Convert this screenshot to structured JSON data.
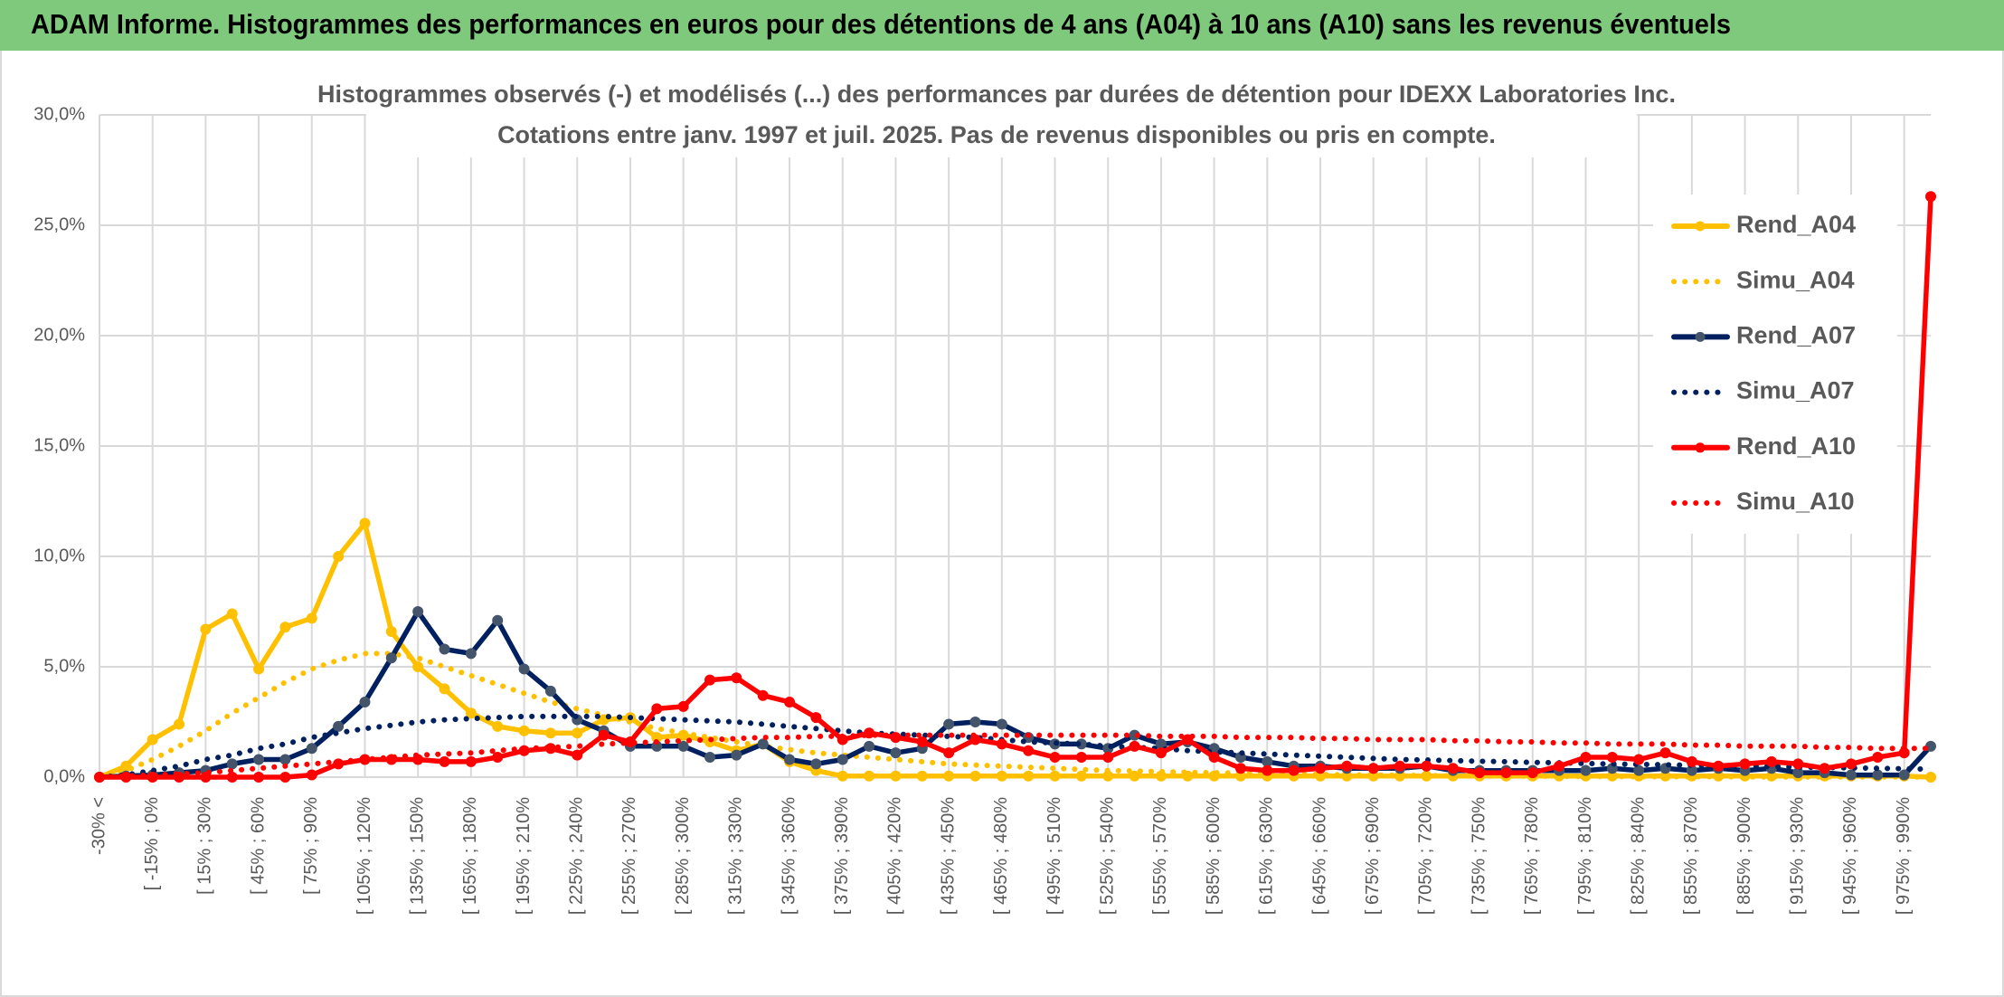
{
  "chart_data": {
    "type": "line",
    "title": "ADAM Informe. Histogrammes des performances en euros pour des détentions de 4 ans (A04) à 10 ans (A10) sans les revenus éventuels",
    "subtitle": [
      "Histogrammes observés (-) et modélisés (...) des performances par durées de détention pour IDEXX Laboratories Inc.",
      "Cotations entre janv. 1997 et juil. 2025. Pas de revenus disponibles ou pris en compte."
    ],
    "categories": [
      "-30% <",
      null,
      "[ -15% ; 0%",
      null,
      "[ 15% ; 30%",
      null,
      "[ 45% ; 60%",
      null,
      "[ 75% ; 90%",
      null,
      "[ 105% ; 120%",
      null,
      "[ 135% ; 150%",
      null,
      "[ 165% ; 180%",
      null,
      "[ 195% ; 210%",
      null,
      "[ 225% ; 240%",
      null,
      "[ 255% ; 270%",
      null,
      "[ 285% ; 300%",
      null,
      "[ 315% ; 330%",
      null,
      "[ 345% ; 360%",
      null,
      "[ 375% ; 390%",
      null,
      "[ 405% ; 420%",
      null,
      "[ 435% ; 450%",
      null,
      "[ 465% ; 480%",
      null,
      "[ 495% ; 510%",
      null,
      "[ 525% ; 540%",
      null,
      "[ 555% ; 570%",
      null,
      "[ 585% ; 600%",
      null,
      "[ 615% ; 630%",
      null,
      "[ 645% ; 660%",
      null,
      "[ 675% ; 690%",
      null,
      "[ 705% ; 720%",
      null,
      "[ 735% ; 750%",
      null,
      "[ 765% ; 780%",
      null,
      "[ 795% ; 810%",
      null,
      "[ 825% ; 840%",
      null,
      "[ 855% ; 870%",
      null,
      "[ 885% ; 900%",
      null,
      "[ 915% ; 930%",
      null,
      "[ 945% ; 960%",
      null,
      "[ 975% ; 990%",
      null
    ],
    "series": [
      {
        "name": "Rend_A04",
        "color": "#FFC000",
        "marker_color": "#FFC000",
        "style": "solid",
        "marker": true,
        "values": [
          0,
          0.5,
          1.7,
          2.4,
          6.7,
          7.4,
          4.9,
          6.8,
          7.2,
          10.0,
          11.5,
          6.6,
          5.0,
          4.0,
          2.9,
          2.3,
          2.1,
          2.0,
          2.0,
          2.6,
          2.7,
          1.8,
          1.9,
          1.6,
          1.2,
          1.5,
          0.7,
          0.3,
          0.05,
          0.05,
          0.05,
          0.05,
          0.05,
          0.05,
          0.05,
          0.05,
          0.05,
          0.05,
          0.05,
          0.05,
          0.05,
          0.05,
          0.05,
          0.05,
          0.05,
          0.05,
          0.05,
          0.05,
          0.05,
          0.05,
          0.05,
          0.05,
          0.05,
          0.05,
          0.05,
          0.05,
          0.05,
          0.05,
          0.05,
          0.05,
          0.05,
          0.05,
          0.05,
          0.05,
          0.05,
          0.05,
          0.05,
          0.05,
          0.05,
          0
        ]
      },
      {
        "name": "Simu_A04",
        "color": "#FFC000",
        "style": "dotted",
        "marker": false,
        "values": [
          0,
          0.3,
          0.8,
          1.4,
          2.1,
          2.9,
          3.6,
          4.3,
          4.9,
          5.3,
          5.6,
          5.6,
          5.4,
          5.0,
          4.6,
          4.2,
          3.8,
          3.4,
          3.1,
          2.8,
          2.5,
          2.2,
          2.0,
          1.8,
          1.6,
          1.4,
          1.25,
          1.1,
          1.0,
          0.9,
          0.8,
          0.7,
          0.6,
          0.55,
          0.5,
          0.45,
          0.4,
          0.35,
          0.3,
          0.28,
          0.25,
          0.22,
          0.2,
          0.18,
          0.16,
          0.14,
          0.12,
          0.1,
          0.1,
          0.08,
          0.07,
          0.06,
          0.05,
          0.05,
          0.04,
          0.04,
          0.03,
          0.03,
          0.02,
          0.02,
          0.02,
          0.02,
          0.01,
          0.01,
          0.01,
          0.01,
          0.01,
          0.01,
          0.01,
          0
        ]
      },
      {
        "name": "Rend_A07",
        "color": "#002060",
        "marker_color": "#44546A",
        "style": "solid",
        "marker": true,
        "values": [
          0,
          0.05,
          0.1,
          0.2,
          0.3,
          0.6,
          0.8,
          0.8,
          1.3,
          2.3,
          3.4,
          5.4,
          7.5,
          5.8,
          5.6,
          7.1,
          4.9,
          3.9,
          2.6,
          2.1,
          1.4,
          1.4,
          1.4,
          0.9,
          1.0,
          1.5,
          0.8,
          0.6,
          0.8,
          1.4,
          1.1,
          1.3,
          2.4,
          2.5,
          2.4,
          1.8,
          1.5,
          1.5,
          1.3,
          1.9,
          1.5,
          1.6,
          1.3,
          0.9,
          0.7,
          0.5,
          0.5,
          0.4,
          0.4,
          0.4,
          0.5,
          0.3,
          0.3,
          0.3,
          0.3,
          0.3,
          0.3,
          0.4,
          0.3,
          0.4,
          0.3,
          0.4,
          0.3,
          0.4,
          0.2,
          0.2,
          0.1,
          0.1,
          0.1,
          1.4
        ]
      },
      {
        "name": "Simu_A07",
        "color": "#002060",
        "style": "dotted",
        "marker": false,
        "values": [
          0,
          0.1,
          0.3,
          0.5,
          0.8,
          1.0,
          1.3,
          1.5,
          1.8,
          2.0,
          2.2,
          2.35,
          2.5,
          2.6,
          2.65,
          2.7,
          2.75,
          2.75,
          2.75,
          2.75,
          2.7,
          2.65,
          2.6,
          2.55,
          2.5,
          2.4,
          2.3,
          2.2,
          2.1,
          2.0,
          1.95,
          1.9,
          1.85,
          1.8,
          1.7,
          1.6,
          1.55,
          1.5,
          1.4,
          1.35,
          1.3,
          1.2,
          1.15,
          1.1,
          1.05,
          1.0,
          0.95,
          0.9,
          0.85,
          0.8,
          0.78,
          0.75,
          0.72,
          0.7,
          0.67,
          0.65,
          0.62,
          0.6,
          0.58,
          0.56,
          0.54,
          0.52,
          0.5,
          0.48,
          0.46,
          0.44,
          0.42,
          0.4,
          0.38,
          0.36
        ]
      },
      {
        "name": "Rend_A10",
        "color": "#FF0000",
        "marker_color": "#FF0000",
        "style": "solid",
        "marker": true,
        "values": [
          0,
          0,
          0,
          0,
          0,
          0,
          0,
          0,
          0.1,
          0.6,
          0.8,
          0.8,
          0.8,
          0.7,
          0.7,
          0.9,
          1.2,
          1.3,
          1.0,
          1.9,
          1.6,
          3.1,
          3.2,
          4.4,
          4.5,
          3.7,
          3.4,
          2.7,
          1.7,
          2.0,
          1.8,
          1.6,
          1.1,
          1.7,
          1.5,
          1.2,
          0.9,
          0.9,
          0.9,
          1.4,
          1.1,
          1.7,
          0.9,
          0.4,
          0.3,
          0.3,
          0.4,
          0.5,
          0.4,
          0.5,
          0.5,
          0.4,
          0.2,
          0.2,
          0.2,
          0.5,
          0.9,
          0.9,
          0.8,
          1.1,
          0.7,
          0.5,
          0.6,
          0.7,
          0.6,
          0.4,
          0.6,
          0.9,
          1.1,
          26.3
        ]
      },
      {
        "name": "Simu_A10",
        "color": "#FF0000",
        "style": "dotted",
        "marker": false,
        "values": [
          0,
          0.05,
          0.1,
          0.15,
          0.2,
          0.3,
          0.4,
          0.5,
          0.6,
          0.7,
          0.8,
          0.9,
          1.0,
          1.05,
          1.1,
          1.2,
          1.3,
          1.35,
          1.4,
          1.5,
          1.55,
          1.6,
          1.65,
          1.7,
          1.75,
          1.8,
          1.8,
          1.85,
          1.85,
          1.9,
          1.9,
          1.9,
          1.9,
          1.9,
          1.9,
          1.9,
          1.9,
          1.9,
          1.9,
          1.9,
          1.85,
          1.85,
          1.85,
          1.8,
          1.8,
          1.8,
          1.75,
          1.75,
          1.7,
          1.7,
          1.7,
          1.65,
          1.65,
          1.6,
          1.6,
          1.55,
          1.55,
          1.5,
          1.5,
          1.5,
          1.45,
          1.45,
          1.4,
          1.4,
          1.4,
          1.35,
          1.35,
          1.3,
          1.3,
          1.3
        ]
      }
    ],
    "ylim": [
      0,
      30
    ],
    "yticks": [
      {
        "value": 0,
        "label": "0,0%"
      },
      {
        "value": 5,
        "label": "5,0%"
      },
      {
        "value": 10,
        "label": "10,0%"
      },
      {
        "value": 15,
        "label": "15,0%"
      },
      {
        "value": 20,
        "label": "20,0%"
      },
      {
        "value": 25,
        "label": "25,0%"
      },
      {
        "value": 30,
        "label": "30,0%"
      }
    ],
    "grid": true,
    "legend": "right"
  }
}
